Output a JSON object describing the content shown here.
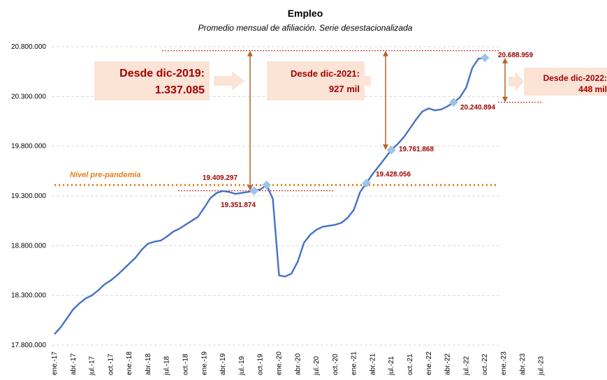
{
  "chart_data": {
    "type": "line",
    "title": "Empleo",
    "subtitle": "Promedio mensual de afiliación. Serie desestacionalizada",
    "ylim": [
      17800000,
      20800000
    ],
    "yticks": [
      17800000,
      18300000,
      18800000,
      19300000,
      19800000,
      20300000,
      20800000
    ],
    "ytick_labels": [
      "17.800.000",
      "18.300.000",
      "18.800.000",
      "19.300.000",
      "19.800.000",
      "20.300.000",
      "20.800.000"
    ],
    "x_labels": [
      "ene.-17",
      "abr.-17",
      "jul.-17",
      "oct.-17",
      "ene.-18",
      "abr.-18",
      "jul.-18",
      "oct.-18",
      "ene.-19",
      "abr.-19",
      "jul.-19",
      "oct.-19",
      "ene.-20",
      "abr.-20",
      "jul.-20",
      "oct.-20",
      "ene.-21",
      "abr.-21",
      "jul.-21",
      "oct.-21",
      "ene.-22",
      "abr.-22",
      "jul.-22",
      "oct.-22",
      "ene.-23",
      "abr.-23",
      "jul.-23"
    ],
    "grid": "horizontal-dashed",
    "series": [
      {
        "color": "#4472c4",
        "values": [
          17910000,
          17980000,
          18070000,
          18160000,
          18220000,
          18270000,
          18300000,
          18350000,
          18410000,
          18450000,
          18500000,
          18560000,
          18620000,
          18680000,
          18760000,
          18820000,
          18840000,
          18850000,
          18890000,
          18940000,
          18970000,
          19010000,
          19050000,
          19090000,
          19180000,
          19280000,
          19330000,
          19350000,
          19340000,
          19320000,
          19330000,
          19340000,
          19351874,
          19365000,
          19409297,
          19270000,
          18500000,
          18490000,
          18520000,
          18640000,
          18830000,
          18910000,
          18960000,
          18990000,
          19000000,
          19010000,
          19030000,
          19080000,
          19160000,
          19340000,
          19428056,
          19520000,
          19600000,
          19680000,
          19761868,
          19820000,
          19890000,
          19980000,
          20070000,
          20150000,
          20180000,
          20160000,
          20170000,
          20200000,
          20240894,
          20290000,
          20390000,
          20590000,
          20680000,
          20688959
        ]
      }
    ],
    "markers": [
      {
        "index": 32,
        "value": 19351874,
        "label": "19.351.874"
      },
      {
        "index": 34,
        "value": 19409297,
        "label": "19.409.297"
      },
      {
        "index": 54,
        "value": 19761868,
        "label": "19.761.868"
      },
      {
        "index": 50,
        "value": 19428056,
        "label": "19.428.056"
      },
      {
        "index": 64,
        "value": 20240894,
        "label": "20.240.894"
      },
      {
        "index": 69,
        "value": 20688959,
        "label": "20.688.959"
      }
    ],
    "prepandemic_level": 19409297,
    "prepandemic_label": "Nivel pre-pandemia",
    "annotations": [
      {
        "title": "Desde dic-2019:",
        "value": "1.337.085"
      },
      {
        "title": "Desde dic-2021:",
        "value": "927 mil"
      },
      {
        "title": "Desde dic-2022:",
        "value": "448 mil"
      }
    ],
    "colors": {
      "line": "#4472c4",
      "marker": "#9dc3e6",
      "accent": "#c00000",
      "prepandemic": "#e07f1f",
      "box": "#fbe3d6",
      "arrow": "#b4662c"
    }
  }
}
